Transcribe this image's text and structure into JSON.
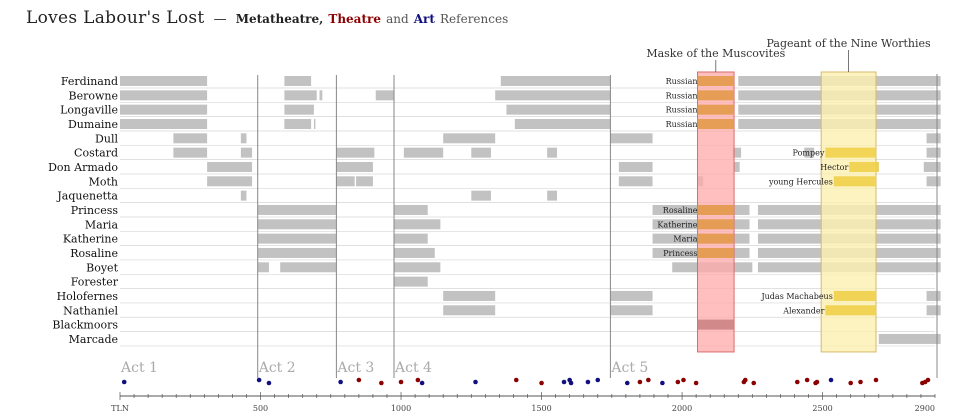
{
  "header": {
    "title": "Loves Labour's Lost",
    "dash": "—",
    "subtitle_prefix": "Metatheatre,",
    "theatre": "Theatre",
    "and": "and",
    "art": "Art",
    "suffix": "References"
  },
  "colors": {
    "presence": "#c2c2c2",
    "mask_fill": "#ffaaaa",
    "mask_stroke": "#d96b6b",
    "mask_seg": "#e39a4a",
    "worthies_fill": "#fdf0b0",
    "worthies_stroke": "#d7b96a",
    "worthies_seg": "#f1d24a",
    "theatre_dot": "#8b0000",
    "art_dot": "#101080",
    "row_line": "#d6d6d6",
    "act_line": "#888888"
  },
  "chart_data": {
    "type": "timeline",
    "x_unit": "TLN",
    "x_range": [
      0,
      2900
    ],
    "x_ticks": [
      {
        "v": 0,
        "label": "TLN"
      },
      {
        "v": 500,
        "label": "500"
      },
      {
        "v": 1000,
        "label": "1000"
      },
      {
        "v": 1500,
        "label": "1500"
      },
      {
        "v": 2000,
        "label": "2000"
      },
      {
        "v": 2500,
        "label": "2500"
      },
      {
        "v": 2900,
        "label": "2900"
      }
    ],
    "acts": [
      {
        "label": "Act 1",
        "start": 0
      },
      {
        "label": "Act 2",
        "start": 490
      },
      {
        "label": "Act 3",
        "start": 770
      },
      {
        "label": "Act 4",
        "start": 975
      },
      {
        "label": "Act 5",
        "start": 1745
      }
    ],
    "scenes": [
      {
        "label": "Maske of the Muscovites",
        "start": 2055,
        "end": 2185
      },
      {
        "label": "Pageant of the Nine Worthies",
        "start": 2495,
        "end": 2690
      }
    ],
    "characters": [
      {
        "name": "Ferdinand",
        "segments": [
          [
            0,
            310
          ],
          [
            585,
            680
          ],
          [
            1355,
            1745
          ],
          [
            2200,
            2920
          ]
        ],
        "roles": [
          {
            "label": "Russian",
            "start": 2055,
            "end": 2185
          }
        ]
      },
      {
        "name": "Berowne",
        "segments": [
          [
            0,
            310
          ],
          [
            585,
            700
          ],
          [
            710,
            720
          ],
          [
            910,
            975
          ],
          [
            1335,
            1745
          ],
          [
            2200,
            2920
          ]
        ],
        "roles": [
          {
            "label": "Russian",
            "start": 2055,
            "end": 2185
          }
        ]
      },
      {
        "name": "Longaville",
        "segments": [
          [
            0,
            310
          ],
          [
            585,
            690
          ],
          [
            1375,
            1745
          ],
          [
            2200,
            2920
          ]
        ],
        "roles": [
          {
            "label": "Russian",
            "start": 2055,
            "end": 2185
          }
        ]
      },
      {
        "name": "Dumaine",
        "segments": [
          [
            0,
            310
          ],
          [
            585,
            680
          ],
          [
            690,
            695
          ],
          [
            1405,
            1745
          ],
          [
            2200,
            2920
          ]
        ],
        "roles": [
          {
            "label": "Russian",
            "start": 2055,
            "end": 2185
          }
        ]
      },
      {
        "name": "Dull",
        "segments": [
          [
            190,
            310
          ],
          [
            430,
            450
          ],
          [
            1150,
            1335
          ],
          [
            1745,
            1895
          ],
          [
            2870,
            2920
          ]
        ],
        "roles": []
      },
      {
        "name": "Costard",
        "segments": [
          [
            190,
            310
          ],
          [
            430,
            470
          ],
          [
            770,
            905
          ],
          [
            1010,
            1150
          ],
          [
            1250,
            1320
          ],
          [
            1520,
            1555
          ],
          [
            2180,
            2210
          ],
          [
            2435,
            2470
          ],
          [
            2870,
            2920
          ]
        ],
        "roles": [
          {
            "label": "Pompey",
            "start": 2510,
            "end": 2690
          }
        ]
      },
      {
        "name": "Don Armado",
        "segments": [
          [
            310,
            470
          ],
          [
            770,
            900
          ],
          [
            1775,
            1895
          ],
          [
            2185,
            2205
          ],
          [
            2595,
            2700
          ],
          [
            2860,
            2920
          ]
        ],
        "roles": [
          {
            "label": "Hector",
            "start": 2595,
            "end": 2700
          }
        ]
      },
      {
        "name": "Moth",
        "segments": [
          [
            310,
            470
          ],
          [
            770,
            835
          ],
          [
            840,
            900
          ],
          [
            1775,
            1895
          ],
          [
            2055,
            2075
          ],
          [
            2540,
            2690
          ],
          [
            2870,
            2920
          ]
        ],
        "roles": [
          {
            "label": "young Hercules",
            "start": 2540,
            "end": 2690
          }
        ]
      },
      {
        "name": "Jaquenetta",
        "segments": [
          [
            430,
            450
          ],
          [
            1250,
            1320
          ],
          [
            1520,
            1555
          ]
        ],
        "roles": []
      },
      {
        "name": "Princess",
        "segments": [
          [
            490,
            770
          ],
          [
            975,
            1095
          ],
          [
            1895,
            2240
          ],
          [
            2270,
            2920
          ]
        ],
        "roles": [
          {
            "label": "Rosaline",
            "start": 2055,
            "end": 2185
          }
        ]
      },
      {
        "name": "Maria",
        "segments": [
          [
            490,
            770
          ],
          [
            975,
            1140
          ],
          [
            1895,
            2240
          ],
          [
            2270,
            2920
          ]
        ],
        "roles": [
          {
            "label": "Katherine",
            "start": 2055,
            "end": 2185
          }
        ]
      },
      {
        "name": "Katherine",
        "segments": [
          [
            490,
            770
          ],
          [
            975,
            1095
          ],
          [
            1895,
            2240
          ],
          [
            2270,
            2920
          ]
        ],
        "roles": [
          {
            "label": "Maria",
            "start": 2055,
            "end": 2185
          }
        ]
      },
      {
        "name": "Rosaline",
        "segments": [
          [
            490,
            770
          ],
          [
            975,
            1120
          ],
          [
            1895,
            2240
          ],
          [
            2270,
            2920
          ]
        ],
        "roles": [
          {
            "label": "Princess",
            "start": 2055,
            "end": 2185
          }
        ]
      },
      {
        "name": "Boyet",
        "segments": [
          [
            490,
            530
          ],
          [
            570,
            770
          ],
          [
            975,
            1140
          ],
          [
            1965,
            2250
          ],
          [
            2270,
            2920
          ]
        ],
        "roles": []
      },
      {
        "name": "Forester",
        "segments": [
          [
            975,
            1095
          ]
        ],
        "roles": []
      },
      {
        "name": "Holofernes",
        "segments": [
          [
            1150,
            1335
          ],
          [
            1745,
            1895
          ],
          [
            2540,
            2690
          ],
          [
            2870,
            2920
          ]
        ],
        "roles": [
          {
            "label": "Judas Machabeus",
            "start": 2540,
            "end": 2690
          }
        ]
      },
      {
        "name": "Nathaniel",
        "segments": [
          [
            1150,
            1335
          ],
          [
            1745,
            1895
          ],
          [
            2510,
            2540
          ],
          [
            2540,
            2690
          ],
          [
            2870,
            2920
          ]
        ],
        "roles": [
          {
            "label": "Alexander",
            "start": 2510,
            "end": 2690
          }
        ]
      },
      {
        "name": "Blackmoors",
        "segments": [
          [
            2055,
            2185
          ]
        ],
        "roles": []
      },
      {
        "name": "Marcade",
        "segments": [
          [
            2700,
            2920
          ]
        ],
        "roles": []
      }
    ],
    "references": [
      {
        "tln": 15,
        "kind": "art"
      },
      {
        "tln": 495,
        "kind": "art"
      },
      {
        "tln": 530,
        "kind": "art"
      },
      {
        "tln": 785,
        "kind": "art"
      },
      {
        "tln": 850,
        "kind": "theatre"
      },
      {
        "tln": 930,
        "kind": "theatre"
      },
      {
        "tln": 1000,
        "kind": "theatre"
      },
      {
        "tln": 1060,
        "kind": "theatre"
      },
      {
        "tln": 1075,
        "kind": "art"
      },
      {
        "tln": 1265,
        "kind": "art"
      },
      {
        "tln": 1410,
        "kind": "theatre"
      },
      {
        "tln": 1500,
        "kind": "theatre"
      },
      {
        "tln": 1580,
        "kind": "art"
      },
      {
        "tln": 1600,
        "kind": "art"
      },
      {
        "tln": 1605,
        "kind": "art"
      },
      {
        "tln": 1665,
        "kind": "art"
      },
      {
        "tln": 1700,
        "kind": "art"
      },
      {
        "tln": 1805,
        "kind": "art"
      },
      {
        "tln": 1850,
        "kind": "theatre"
      },
      {
        "tln": 1880,
        "kind": "theatre"
      },
      {
        "tln": 1930,
        "kind": "art"
      },
      {
        "tln": 1985,
        "kind": "theatre"
      },
      {
        "tln": 2005,
        "kind": "theatre"
      },
      {
        "tln": 2050,
        "kind": "theatre"
      },
      {
        "tln": 2220,
        "kind": "theatre"
      },
      {
        "tln": 2225,
        "kind": "theatre"
      },
      {
        "tln": 2255,
        "kind": "theatre"
      },
      {
        "tln": 2410,
        "kind": "theatre"
      },
      {
        "tln": 2445,
        "kind": "theatre"
      },
      {
        "tln": 2475,
        "kind": "theatre"
      },
      {
        "tln": 2480,
        "kind": "theatre"
      },
      {
        "tln": 2530,
        "kind": "art"
      },
      {
        "tln": 2600,
        "kind": "theatre"
      },
      {
        "tln": 2635,
        "kind": "theatre"
      },
      {
        "tln": 2690,
        "kind": "theatre"
      },
      {
        "tln": 2855,
        "kind": "theatre"
      },
      {
        "tln": 2865,
        "kind": "theatre"
      },
      {
        "tln": 2875,
        "kind": "theatre"
      }
    ]
  }
}
